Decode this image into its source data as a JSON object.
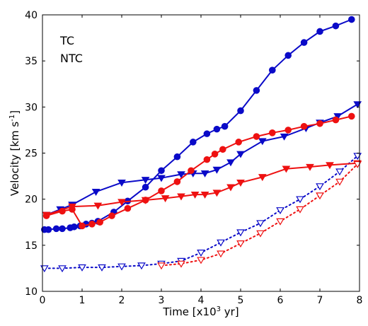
{
  "chart_data": {
    "type": "line",
    "xlabel": "Time [x10",
    "xlabel_sup": "3",
    "xlabel_tail": " yr]",
    "ylabel": "Velocity [km s",
    "ylabel_sup": "-1",
    "ylabel_tail": "]",
    "xlim": [
      0,
      8
    ],
    "ylim": [
      10,
      40
    ],
    "xticks": [
      "0",
      "1",
      "2",
      "3",
      "4",
      "5",
      "6",
      "7",
      "8"
    ],
    "yticks": [
      "10",
      "15",
      "20",
      "25",
      "30",
      "35",
      "40"
    ],
    "grid": false,
    "legend_position": "top-left",
    "legend": [
      {
        "label": "TC",
        "color": "#0000cc"
      },
      {
        "label": "NTC",
        "color": "#dd0000"
      }
    ],
    "series": [
      {
        "color": "#0a0ac8",
        "line": "solid",
        "marker": "circle",
        "filled": true,
        "points": [
          [
            0.05,
            16.7
          ],
          [
            0.15,
            16.7
          ],
          [
            0.35,
            16.8
          ],
          [
            0.5,
            16.8
          ],
          [
            0.7,
            16.9
          ],
          [
            0.8,
            17.0
          ],
          [
            0.95,
            17.1
          ],
          [
            1.1,
            17.3
          ],
          [
            1.25,
            17.4
          ],
          [
            1.4,
            17.6
          ],
          [
            1.8,
            18.6
          ],
          [
            2.15,
            19.8
          ],
          [
            2.6,
            21.3
          ],
          [
            3.0,
            23.1
          ],
          [
            3.4,
            24.6
          ],
          [
            3.8,
            26.2
          ],
          [
            4.15,
            27.1
          ],
          [
            4.4,
            27.6
          ],
          [
            4.6,
            27.9
          ],
          [
            5.0,
            29.6
          ],
          [
            5.4,
            31.8
          ],
          [
            5.8,
            34.0
          ],
          [
            6.2,
            35.6
          ],
          [
            6.6,
            37.0
          ],
          [
            7.0,
            38.2
          ],
          [
            7.4,
            38.8
          ],
          [
            7.8,
            39.5
          ]
        ]
      },
      {
        "color": "#0a0ac8",
        "line": "solid",
        "marker": "triangle-down",
        "filled": true,
        "points": [
          [
            0.1,
            18.3
          ],
          [
            0.45,
            18.9
          ],
          [
            0.75,
            19.4
          ],
          [
            1.35,
            20.8
          ],
          [
            2.0,
            21.8
          ],
          [
            2.6,
            22.1
          ],
          [
            3.0,
            22.3
          ],
          [
            3.5,
            22.7
          ],
          [
            3.8,
            22.8
          ],
          [
            4.1,
            22.8
          ],
          [
            4.4,
            23.2
          ],
          [
            4.75,
            24.0
          ],
          [
            5.0,
            24.9
          ],
          [
            5.55,
            26.3
          ],
          [
            6.1,
            26.8
          ],
          [
            6.65,
            27.7
          ],
          [
            7.0,
            28.3
          ],
          [
            7.45,
            29.0
          ],
          [
            7.95,
            30.3
          ]
        ]
      },
      {
        "color": "#0a0ac8",
        "line": "dotted",
        "marker": "triangle-down",
        "filled": false,
        "points": [
          [
            0.05,
            12.5
          ],
          [
            0.5,
            12.5
          ],
          [
            1.0,
            12.6
          ],
          [
            1.5,
            12.6
          ],
          [
            2.0,
            12.7
          ],
          [
            2.5,
            12.8
          ],
          [
            3.0,
            13.0
          ],
          [
            3.5,
            13.3
          ],
          [
            4.0,
            14.2
          ],
          [
            4.5,
            15.3
          ],
          [
            5.0,
            16.4
          ],
          [
            5.5,
            17.4
          ],
          [
            6.0,
            18.8
          ],
          [
            6.5,
            20.0
          ],
          [
            7.0,
            21.4
          ],
          [
            7.5,
            23.0
          ],
          [
            7.95,
            24.7
          ]
        ]
      },
      {
        "color": "#ee1111",
        "line": "solid",
        "marker": "circle",
        "filled": true,
        "points": [
          [
            0.1,
            18.2
          ],
          [
            0.5,
            18.7
          ],
          [
            0.75,
            18.9
          ],
          [
            1.0,
            17.1
          ],
          [
            1.25,
            17.3
          ],
          [
            1.45,
            17.5
          ],
          [
            1.75,
            18.2
          ],
          [
            2.15,
            19.0
          ],
          [
            2.6,
            19.9
          ],
          [
            3.0,
            20.9
          ],
          [
            3.4,
            21.9
          ],
          [
            3.75,
            23.1
          ],
          [
            4.15,
            24.3
          ],
          [
            4.35,
            24.9
          ],
          [
            4.55,
            25.4
          ],
          [
            4.95,
            26.2
          ],
          [
            5.4,
            26.8
          ],
          [
            5.8,
            27.2
          ],
          [
            6.2,
            27.5
          ],
          [
            6.6,
            27.9
          ],
          [
            7.0,
            28.2
          ],
          [
            7.4,
            28.6
          ],
          [
            7.8,
            29.0
          ]
        ]
      },
      {
        "color": "#ee1111",
        "line": "solid",
        "marker": "triangle-down",
        "filled": true,
        "points": [
          [
            0.1,
            18.3
          ],
          [
            0.75,
            19.2
          ],
          [
            1.4,
            19.3
          ],
          [
            2.0,
            19.7
          ],
          [
            2.6,
            19.9
          ],
          [
            3.1,
            20.1
          ],
          [
            3.5,
            20.3
          ],
          [
            3.85,
            20.5
          ],
          [
            4.1,
            20.5
          ],
          [
            4.4,
            20.7
          ],
          [
            4.75,
            21.3
          ],
          [
            5.0,
            21.8
          ],
          [
            5.55,
            22.4
          ],
          [
            6.15,
            23.3
          ],
          [
            6.75,
            23.5
          ],
          [
            7.25,
            23.7
          ],
          [
            7.95,
            23.9
          ]
        ]
      },
      {
        "color": "#ee1111",
        "line": "dotted",
        "marker": "triangle-down",
        "filled": false,
        "points": [
          [
            3.0,
            12.8
          ],
          [
            3.5,
            13.0
          ],
          [
            4.0,
            13.4
          ],
          [
            4.5,
            14.1
          ],
          [
            5.0,
            15.2
          ],
          [
            5.5,
            16.3
          ],
          [
            6.0,
            17.6
          ],
          [
            6.5,
            18.9
          ],
          [
            7.0,
            20.4
          ],
          [
            7.5,
            21.9
          ],
          [
            7.95,
            23.8
          ]
        ]
      }
    ]
  }
}
